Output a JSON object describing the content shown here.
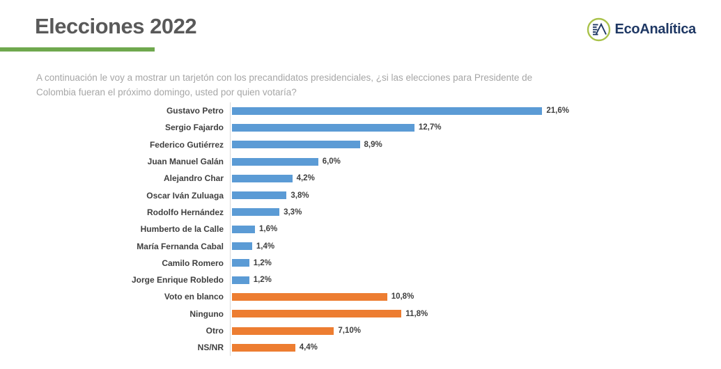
{
  "header": {
    "title": "Elecciones 2022",
    "logo_text": "EcoAnalítica"
  },
  "question": {
    "line1": "A continuación le voy a mostrar un tarjetón con los precandidatos presidenciales, ¿si las elecciones para Presidente de",
    "line2": "Colombia fueran el próximo domingo, usted por quien votaría?"
  },
  "colors": {
    "candidate_bar": "#5B9BD5",
    "other_bar": "#ED7D31",
    "title_underline": "#6FA84E",
    "logo_navy": "#1F3864",
    "logo_ring_green": "#A9C24A",
    "axis_line": "#D9D9D9"
  },
  "chart_data": {
    "type": "bar",
    "orientation": "horizontal",
    "title": "",
    "xlabel": "",
    "ylabel": "",
    "xlim": [
      0,
      22.5
    ],
    "grid": false,
    "legend": "none",
    "group_colors": {
      "candidate": "#5B9BD5",
      "other": "#ED7D31"
    },
    "items": [
      {
        "label": "Gustavo Petro",
        "value": 21.6,
        "value_label": "21,6%",
        "group": "candidate"
      },
      {
        "label": "Sergio Fajardo",
        "value": 12.7,
        "value_label": "12,7%",
        "group": "candidate"
      },
      {
        "label": "Federico Gutiérrez",
        "value": 8.9,
        "value_label": "8,9%",
        "group": "candidate"
      },
      {
        "label": "Juan Manuel Galán",
        "value": 6.0,
        "value_label": "6,0%",
        "group": "candidate"
      },
      {
        "label": "Alejandro Char",
        "value": 4.2,
        "value_label": "4,2%",
        "group": "candidate"
      },
      {
        "label": "Oscar Iván Zuluaga",
        "value": 3.8,
        "value_label": "3,8%",
        "group": "candidate"
      },
      {
        "label": "Rodolfo Hernández",
        "value": 3.3,
        "value_label": "3,3%",
        "group": "candidate"
      },
      {
        "label": "Humberto de la Calle",
        "value": 1.6,
        "value_label": "1,6%",
        "group": "candidate"
      },
      {
        "label": "María Fernanda Cabal",
        "value": 1.4,
        "value_label": "1,4%",
        "group": "candidate"
      },
      {
        "label": "Camilo Romero",
        "value": 1.2,
        "value_label": "1,2%",
        "group": "candidate"
      },
      {
        "label": "Jorge Enrique Robledo",
        "value": 1.2,
        "value_label": "1,2%",
        "group": "candidate"
      },
      {
        "label": "Voto en blanco",
        "value": 10.8,
        "value_label": "10,8%",
        "group": "other"
      },
      {
        "label": "Ninguno",
        "value": 11.8,
        "value_label": "11,8%",
        "group": "other"
      },
      {
        "label": "Otro",
        "value": 7.1,
        "value_label": "7,10%",
        "group": "other"
      },
      {
        "label": "NS/NR",
        "value": 4.4,
        "value_label": "4,4%",
        "group": "other"
      }
    ]
  }
}
